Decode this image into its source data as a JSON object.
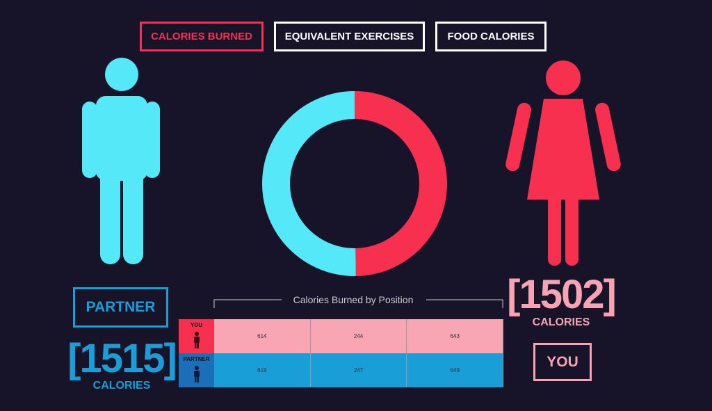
{
  "tabs": [
    "CALORIES BURNED",
    "EQUIVALENT EXERCISES",
    "FOOD CALORIES"
  ],
  "partner": {
    "label": "PARTNER",
    "calories": {
      "value": 1515,
      "label": "[1515]"
    },
    "unit": "CALORIES"
  },
  "you": {
    "label": "YOU",
    "calories": {
      "value": 1502,
      "label": "[1502]"
    },
    "unit": "CALORIES"
  },
  "table": {
    "title": "Calories Burned by Position",
    "rows": [
      {
        "label": "YOU",
        "values": [
          614,
          244,
          643
        ]
      },
      {
        "label": "PARTNER",
        "values": [
          619,
          247,
          649
        ]
      }
    ]
  }
}
